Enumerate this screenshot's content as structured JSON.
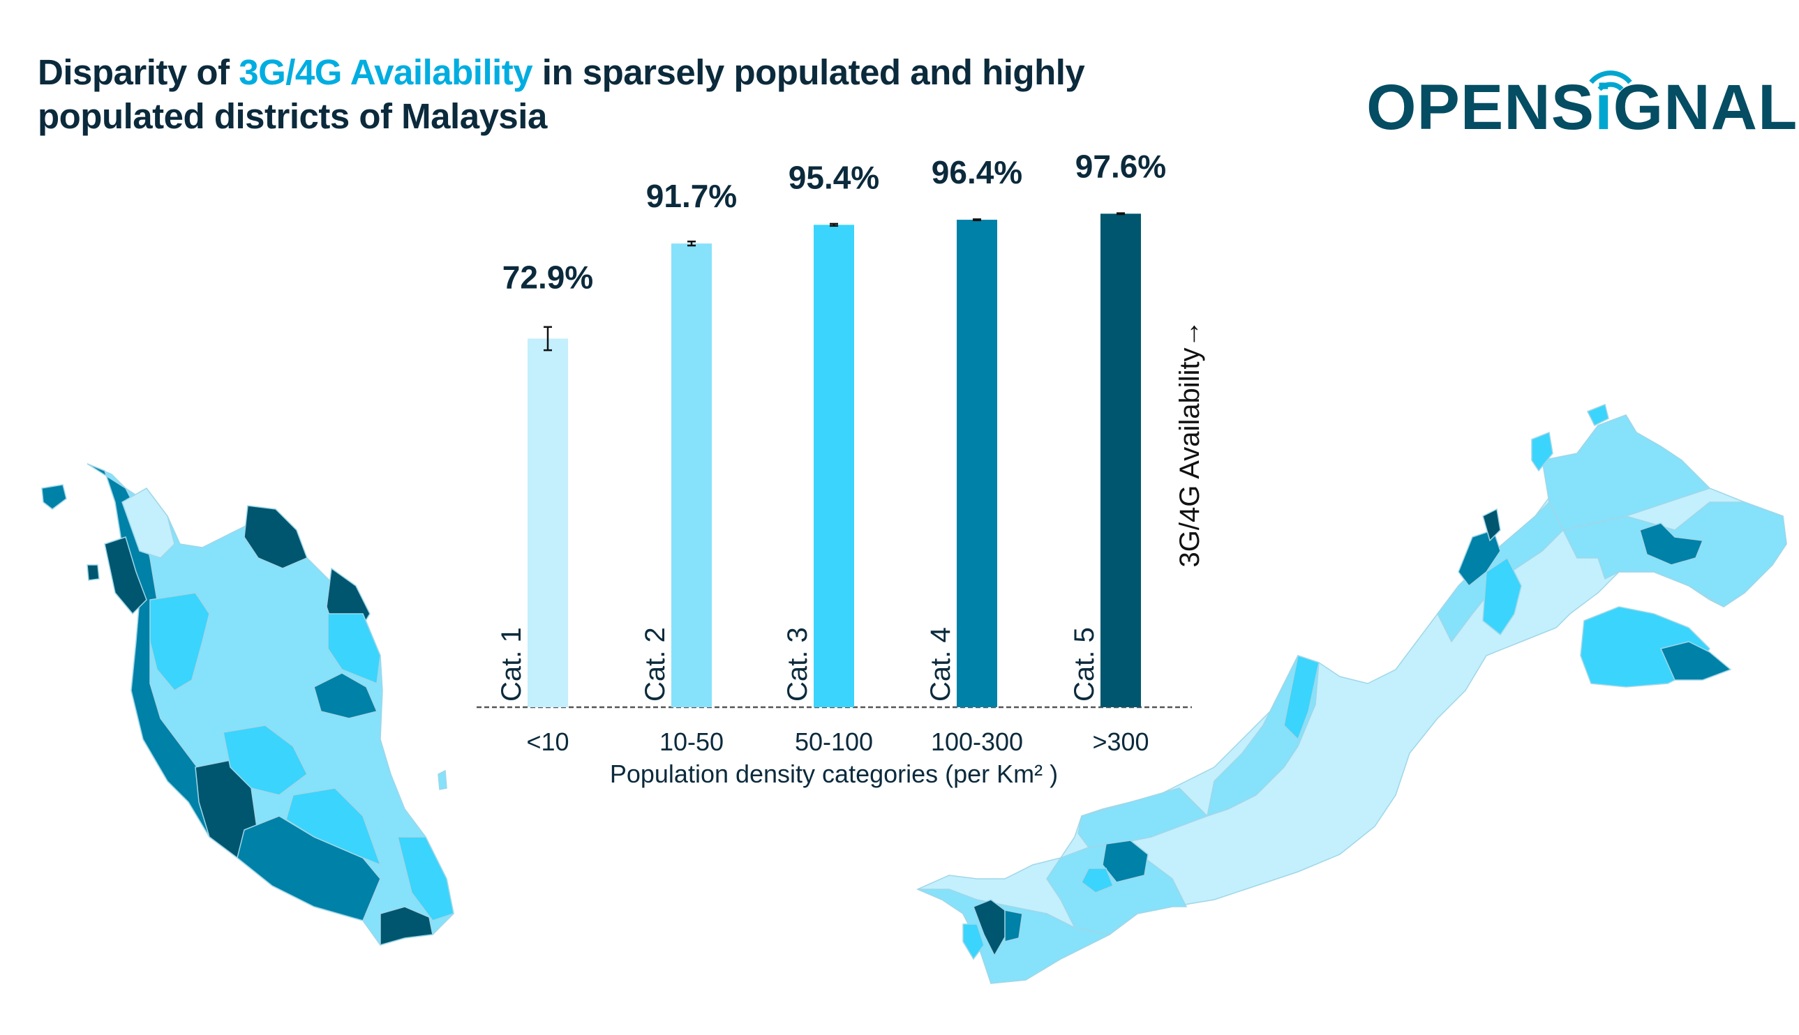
{
  "title": {
    "part1": "Disparity of ",
    "accent": "3G/4G Availability",
    "part2": " in sparsely populated and highly",
    "line2": "populated districts of Malaysia"
  },
  "logo": {
    "text_before": "OPENS",
    "text_i": "i",
    "text_after": "GNAL",
    "icon": "wifi-signal-icon"
  },
  "colors": {
    "title": "#0b2a3c",
    "accent": "#00ade0",
    "logo": "#044d63",
    "cat1": "#c4effd",
    "cat2": "#86e1fb",
    "cat3": "#3bd4fc",
    "cat4": "#0081a7",
    "cat5": "#00566f"
  },
  "chart_data": {
    "type": "bar",
    "title": "Disparity of 3G/4G Availability in sparsely populated and highly populated districts of Malaysia",
    "categories": [
      "<10",
      "10-50",
      "50-100",
      "100-300",
      ">300"
    ],
    "category_names": [
      "Cat. 1",
      "Cat. 2",
      "Cat. 3",
      "Cat. 4",
      "Cat. 5"
    ],
    "values": [
      72.9,
      91.7,
      95.4,
      96.4,
      97.6
    ],
    "value_labels": [
      "72.9%",
      "91.7%",
      "95.4%",
      "96.4%",
      "97.6%"
    ],
    "error": [
      2.3,
      0.4,
      0.2,
      0.1,
      0.1
    ],
    "xlabel": "Population density categories (per Km² )",
    "ylabel": "3G/4G Availability→",
    "ylim": [
      0,
      100
    ],
    "grid": false,
    "legend": "none"
  }
}
